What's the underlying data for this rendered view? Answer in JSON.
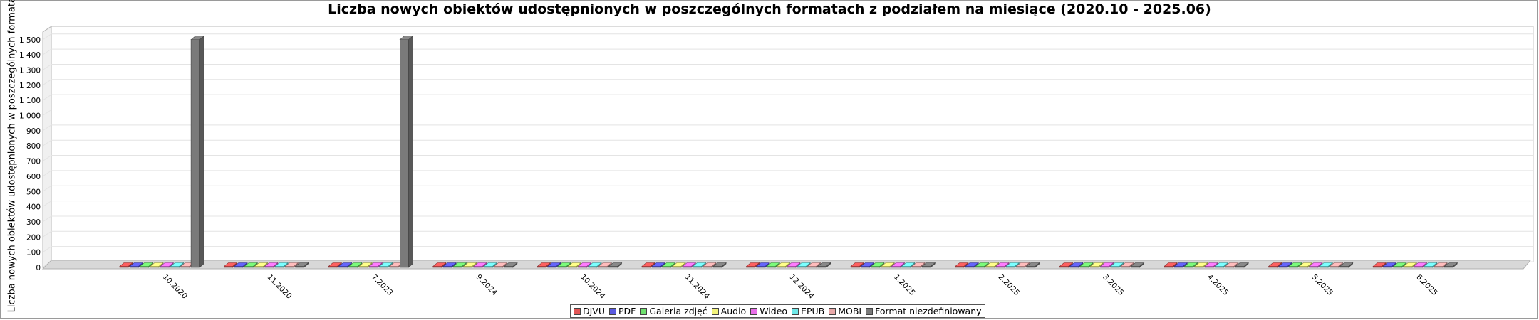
{
  "chart_data": {
    "type": "bar",
    "title": "Liczba nowych obiektów udostępnionych w poszczególnych formatach z podziałem na miesiące (2020.10 - 2025.06)",
    "ylabel": "Liczba nowych obiektów udostępnionych w poszczególnych formatach",
    "xlabel": "",
    "ylim": [
      0,
      1550
    ],
    "yticks": [
      {
        "v": 0,
        "label": "0"
      },
      {
        "v": 100,
        "label": "100"
      },
      {
        "v": 200,
        "label": "200"
      },
      {
        "v": 300,
        "label": "300"
      },
      {
        "v": 400,
        "label": "400"
      },
      {
        "v": 500,
        "label": "500"
      },
      {
        "v": 600,
        "label": "600"
      },
      {
        "v": 700,
        "label": "700"
      },
      {
        "v": 800,
        "label": "800"
      },
      {
        "v": 900,
        "label": "900"
      },
      {
        "v": 1000,
        "label": "1 000"
      },
      {
        "v": 1100,
        "label": "1 100"
      },
      {
        "v": 1200,
        "label": "1 200"
      },
      {
        "v": 1300,
        "label": "1 300"
      },
      {
        "v": 1400,
        "label": "1 400"
      },
      {
        "v": 1500,
        "label": "1 500"
      }
    ],
    "grid": true,
    "legend_position": "bottom",
    "categories": [
      "10.2020",
      "11.2020",
      "7.2023",
      "9.2024",
      "10.2024",
      "11.2024",
      "12.2024",
      "1.2025",
      "2.2025",
      "3.2025",
      "4.2025",
      "5.2025",
      "6.2025"
    ],
    "series": [
      {
        "name": "DJVU",
        "color": "#e25656",
        "values": [
          0,
          0,
          0,
          0,
          0,
          0,
          0,
          0,
          0,
          0,
          0,
          0,
          0
        ]
      },
      {
        "name": "PDF",
        "color": "#5a5ae0",
        "values": [
          0,
          0,
          0,
          0,
          0,
          0,
          0,
          0,
          0,
          0,
          0,
          0,
          0
        ]
      },
      {
        "name": "Galeria zdjęć",
        "color": "#6ee06e",
        "values": [
          0,
          0,
          0,
          0,
          0,
          0,
          0,
          0,
          0,
          0,
          0,
          0,
          0
        ]
      },
      {
        "name": "Audio",
        "color": "#f2f27a",
        "values": [
          0,
          0,
          0,
          0,
          0,
          0,
          0,
          0,
          0,
          0,
          0,
          0,
          0
        ]
      },
      {
        "name": "Wideo",
        "color": "#e86ee8",
        "values": [
          0,
          0,
          0,
          0,
          0,
          0,
          0,
          0,
          0,
          0,
          0,
          0,
          0
        ]
      },
      {
        "name": "EPUB",
        "color": "#6ee8e8",
        "values": [
          0,
          0,
          0,
          0,
          0,
          0,
          0,
          0,
          0,
          0,
          0,
          0,
          0
        ]
      },
      {
        "name": "MOBI",
        "color": "#e8a8a8",
        "values": [
          0,
          0,
          0,
          0,
          0,
          0,
          0,
          0,
          0,
          0,
          0,
          0,
          0
        ]
      },
      {
        "name": "Format niezdefiniowany",
        "color": "#7a7a7a",
        "values": [
          1500,
          0,
          1500,
          5,
          0,
          0,
          0,
          0,
          0,
          0,
          0,
          0,
          0
        ]
      }
    ]
  }
}
